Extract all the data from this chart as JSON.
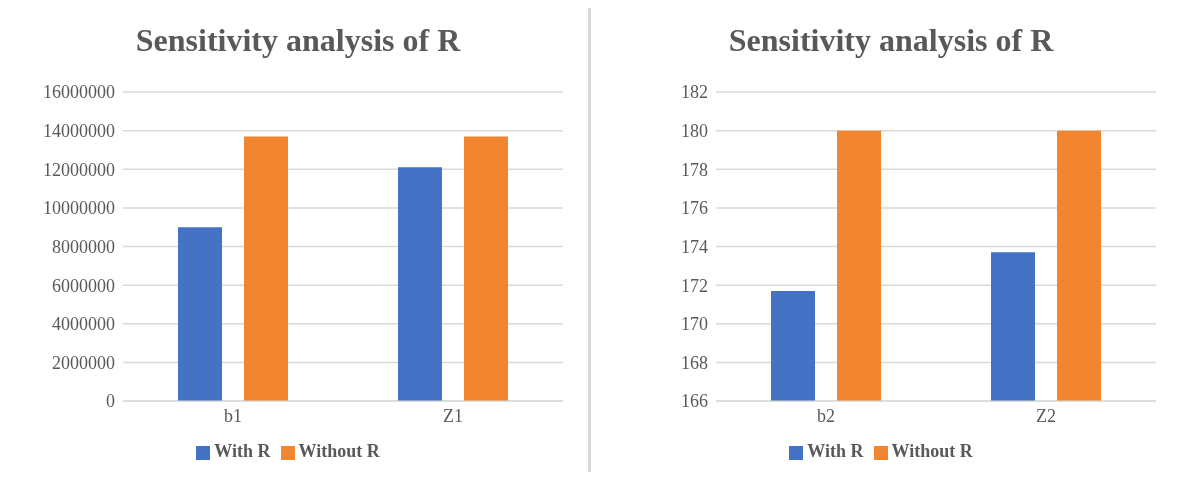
{
  "chart_data": [
    {
      "type": "bar",
      "title": "Sensitivity analysis of R",
      "categories": [
        "b1",
        "Z1"
      ],
      "series": [
        {
          "name": "With R",
          "color": "#4472c4",
          "values": [
            9000000,
            12100000
          ]
        },
        {
          "name": "Without R",
          "color": "#f28530",
          "values": [
            13700000,
            13700000
          ]
        }
      ],
      "ylim": [
        0,
        16000000
      ],
      "yticks": [
        0,
        2000000,
        4000000,
        6000000,
        8000000,
        10000000,
        12000000,
        14000000,
        16000000
      ],
      "grid": "y",
      "legend": "bottom"
    },
    {
      "type": "bar",
      "title": "Sensitivity analysis of R",
      "categories": [
        "b2",
        "Z2"
      ],
      "series": [
        {
          "name": "With R",
          "color": "#4472c4",
          "values": [
            171.7,
            173.7
          ]
        },
        {
          "name": "Without R",
          "color": "#f28530",
          "values": [
            180,
            180
          ]
        }
      ],
      "ylim": [
        166,
        182
      ],
      "yticks": [
        166,
        168,
        170,
        172,
        174,
        176,
        178,
        180,
        182
      ],
      "grid": "y",
      "legend": "bottom"
    }
  ]
}
